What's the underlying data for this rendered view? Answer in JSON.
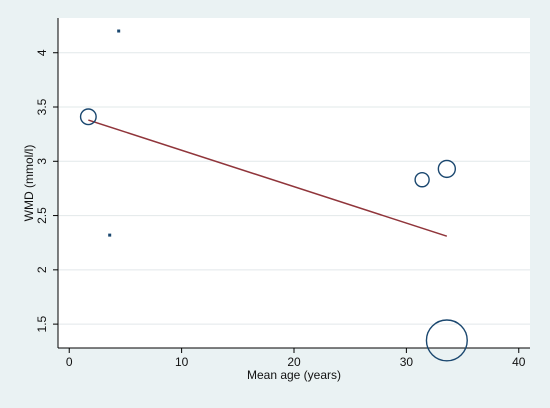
{
  "chart_data": {
    "type": "scatter",
    "title": "",
    "xlabel": "Mean age (years)",
    "ylabel": "WMD (mmol/l)",
    "xlim": [
      -1,
      41
    ],
    "ylim": [
      1.28,
      4.32
    ],
    "xticks": [
      0,
      10,
      20,
      30,
      40
    ],
    "yticks": [
      1.5,
      2,
      2.5,
      3,
      3.5,
      4
    ],
    "ytick_labels": [
      "1.5",
      "2",
      "2.5",
      "3",
      "3.5",
      "4"
    ],
    "grid": "horizontal",
    "legend": "none",
    "points": [
      {
        "x": 1.7,
        "y": 3.41,
        "weight": 8
      },
      {
        "x": 4.4,
        "y": 4.2,
        "weight": 0.6
      },
      {
        "x": 3.6,
        "y": 2.32,
        "weight": 0.6
      },
      {
        "x": 31.4,
        "y": 2.83,
        "weight": 6.5
      },
      {
        "x": 33.6,
        "y": 2.93,
        "weight": 9.5
      },
      {
        "x": 33.6,
        "y": 1.35,
        "weight": 55
      }
    ],
    "fit_line": {
      "x": [
        1.7,
        33.6
      ],
      "y": [
        3.38,
        2.31
      ]
    },
    "colors": {
      "background": "#eaf2f3",
      "plot_background": "#ffffff",
      "marker": "#1a476f",
      "fit_line": "#90353b",
      "grid": "#e2e8ea"
    }
  }
}
